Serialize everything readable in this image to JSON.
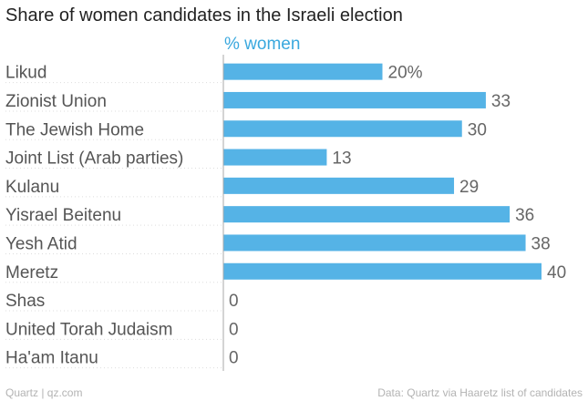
{
  "chart_data": {
    "type": "bar",
    "orientation": "horizontal",
    "title": "Share of women candidates in the Israeli election",
    "series": [
      {
        "name": "% women",
        "values": [
          20,
          33,
          30,
          13,
          29,
          36,
          38,
          40,
          0,
          0,
          0
        ],
        "value_labels": [
          "20%",
          "33",
          "30",
          "13",
          "29",
          "36",
          "38",
          "40",
          "0",
          "0",
          "0"
        ]
      }
    ],
    "categories": [
      "Likud",
      "Zionist Union",
      "The Jewish Home",
      "Joint List (Arab parties)",
      "Kulanu",
      "Yisrael Beitenu",
      "Yesh Atid",
      "Meretz",
      "Shas",
      "United Torah Judaism",
      "Ha'am Itanu"
    ],
    "xlim": [
      0,
      40
    ],
    "grid": false,
    "legend": "top"
  },
  "footer": {
    "source_left": "Quartz | qz.com",
    "source_right": "Data: Quartz via Haaretz list of candidates"
  },
  "colors": {
    "bar": "#55b3e6",
    "series_label": "#3aa8de",
    "category_text": "#555555",
    "value_text": "#666666",
    "axis": "#aaaaaa",
    "dotted": "#dddddd"
  }
}
